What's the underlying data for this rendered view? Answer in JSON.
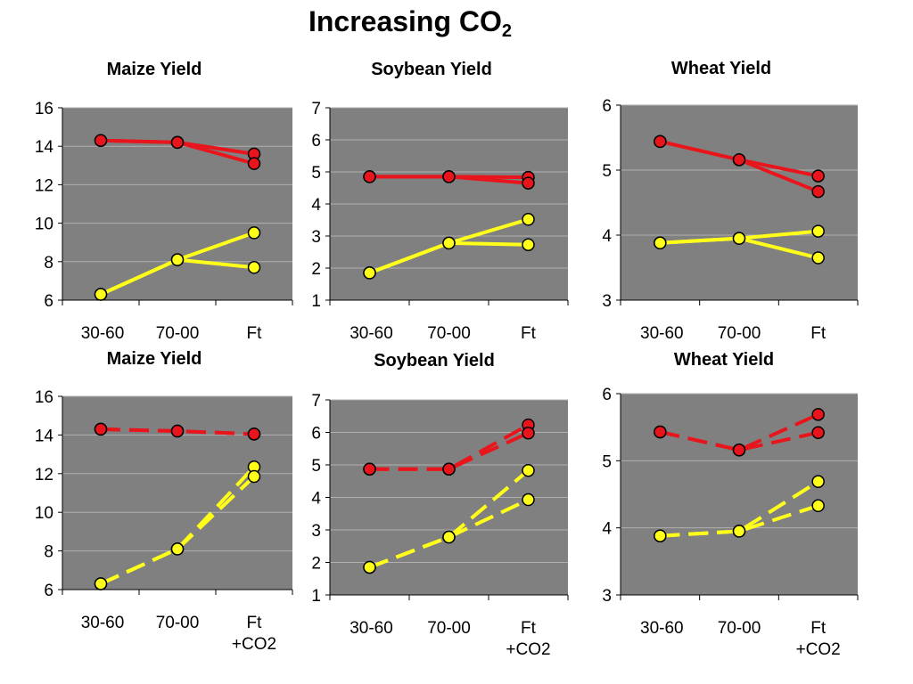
{
  "main_title": {
    "text": "Increasing CO",
    "sub": "2"
  },
  "colors": {
    "plot_bg": "#808080",
    "gridline": "#b0b0b0",
    "red_series": "#e8161c",
    "yellow_series": "#ffff1a",
    "marker_stroke": "#000000"
  },
  "chart_data": [
    {
      "type": "line",
      "title": "Maize Yield",
      "line_style": "solid",
      "categories": [
        "30-60",
        "70-00",
        "Ft"
      ],
      "ylim": [
        6,
        16
      ],
      "yticks": [
        6,
        8,
        10,
        12,
        14,
        16
      ],
      "grid": true,
      "series": [
        {
          "color": "red",
          "values": [
            14.3,
            14.2,
            13.6
          ]
        },
        {
          "color": "red",
          "values": [
            14.3,
            14.2,
            13.1
          ]
        },
        {
          "color": "yellow",
          "values": [
            6.3,
            8.1,
            9.5
          ]
        },
        {
          "color": "yellow",
          "values": [
            6.3,
            8.1,
            7.7
          ]
        }
      ]
    },
    {
      "type": "line",
      "title": "Soybean Yield",
      "line_style": "solid",
      "categories": [
        "30-60",
        "70-00",
        "Ft"
      ],
      "ylim": [
        1,
        7
      ],
      "yticks": [
        1,
        2,
        3,
        4,
        5,
        6,
        7
      ],
      "grid": true,
      "series": [
        {
          "color": "red",
          "values": [
            4.85,
            4.85,
            4.83
          ]
        },
        {
          "color": "red",
          "values": [
            4.85,
            4.85,
            4.65
          ]
        },
        {
          "color": "yellow",
          "values": [
            1.85,
            2.78,
            3.52
          ]
        },
        {
          "color": "yellow",
          "values": [
            1.85,
            2.78,
            2.73
          ]
        }
      ]
    },
    {
      "type": "line",
      "title": "Wheat Yield",
      "line_style": "solid",
      "categories": [
        "30-60",
        "70-00",
        "Ft"
      ],
      "ylim": [
        3,
        6
      ],
      "yticks": [
        3,
        4,
        5,
        6
      ],
      "grid": true,
      "series": [
        {
          "color": "red",
          "values": [
            5.44,
            5.16,
            4.91
          ]
        },
        {
          "color": "red",
          "values": [
            5.44,
            5.16,
            4.67
          ]
        },
        {
          "color": "yellow",
          "values": [
            3.88,
            3.95,
            4.06
          ]
        },
        {
          "color": "yellow",
          "values": [
            3.88,
            3.95,
            3.65
          ]
        }
      ]
    },
    {
      "type": "line",
      "title": "Maize Yield",
      "line_style": "dashed",
      "categories": [
        "30-60",
        "70-00",
        "Ft\n+CO2"
      ],
      "ylim": [
        6,
        16
      ],
      "yticks": [
        6,
        8,
        10,
        12,
        14,
        16
      ],
      "grid": true,
      "series": [
        {
          "color": "red",
          "values": [
            14.3,
            14.2,
            14.05
          ]
        },
        {
          "color": "red",
          "values": [
            14.3,
            14.2,
            14.05
          ]
        },
        {
          "color": "yellow",
          "values": [
            6.3,
            8.1,
            12.35
          ]
        },
        {
          "color": "yellow",
          "values": [
            6.3,
            8.1,
            11.85
          ]
        }
      ]
    },
    {
      "type": "line",
      "title": "Soybean Yield",
      "line_style": "dashed",
      "categories": [
        "30-60",
        "70-00",
        "Ft\n+CO2"
      ],
      "ylim": [
        1,
        7
      ],
      "yticks": [
        1,
        2,
        3,
        4,
        5,
        6,
        7
      ],
      "grid": true,
      "series": [
        {
          "color": "red",
          "values": [
            4.87,
            4.87,
            6.23
          ]
        },
        {
          "color": "red",
          "values": [
            4.87,
            4.87,
            5.98
          ]
        },
        {
          "color": "yellow",
          "values": [
            1.85,
            2.78,
            4.83
          ]
        },
        {
          "color": "yellow",
          "values": [
            1.85,
            2.78,
            3.93
          ]
        }
      ]
    },
    {
      "type": "line",
      "title": "Wheat Yield",
      "line_style": "dashed",
      "categories": [
        "30-60",
        "70-00",
        "Ft\n+CO2"
      ],
      "ylim": [
        3,
        6
      ],
      "yticks": [
        3,
        4,
        5,
        6
      ],
      "grid": true,
      "series": [
        {
          "color": "red",
          "values": [
            5.43,
            5.16,
            5.69
          ]
        },
        {
          "color": "red",
          "values": [
            5.43,
            5.16,
            5.42
          ]
        },
        {
          "color": "yellow",
          "values": [
            3.88,
            3.95,
            4.69
          ]
        },
        {
          "color": "yellow",
          "values": [
            3.88,
            3.95,
            4.33
          ]
        }
      ]
    }
  ]
}
